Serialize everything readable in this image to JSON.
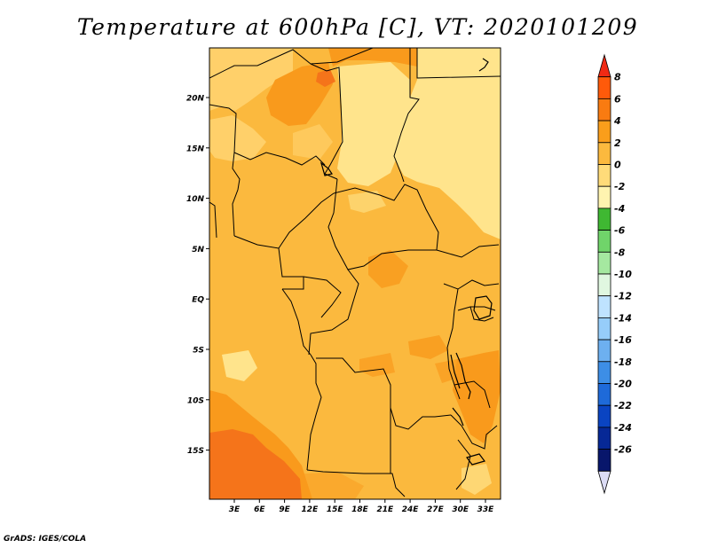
{
  "title": "Temperature at 600hPa [C], VT: 2020101209",
  "footer": "GrADS: IGES/COLA",
  "map": {
    "lon_labels": [
      "3E",
      "6E",
      "9E",
      "12E",
      "15E",
      "18E",
      "21E",
      "24E",
      "27E",
      "30E",
      "33E"
    ],
    "lat_labels": [
      "20N",
      "15N",
      "10N",
      "5N",
      "EQ",
      "5S",
      "10S",
      "15S"
    ]
  },
  "colorbar": {
    "labels": [
      "8",
      "6",
      "4",
      "2",
      "0",
      "-2",
      "-4",
      "-6",
      "-8",
      "-10",
      "-12",
      "-14",
      "-16",
      "-18",
      "-20",
      "-22",
      "-24",
      "-26"
    ],
    "colors": [
      "#f02a14",
      "#ff5a0a",
      "#f97b11",
      "#fa9e1b",
      "#fbb93e",
      "#ffdb79",
      "#fff4b0",
      "#3fb832",
      "#70d46a",
      "#a5e8a0",
      "#e0f7e0",
      "#bfe3ff",
      "#96cdfa",
      "#6db0f0",
      "#3d8ee6",
      "#1e6ad9",
      "#0a44c2",
      "#062896",
      "#08166b",
      "#dcdcf5"
    ]
  }
}
